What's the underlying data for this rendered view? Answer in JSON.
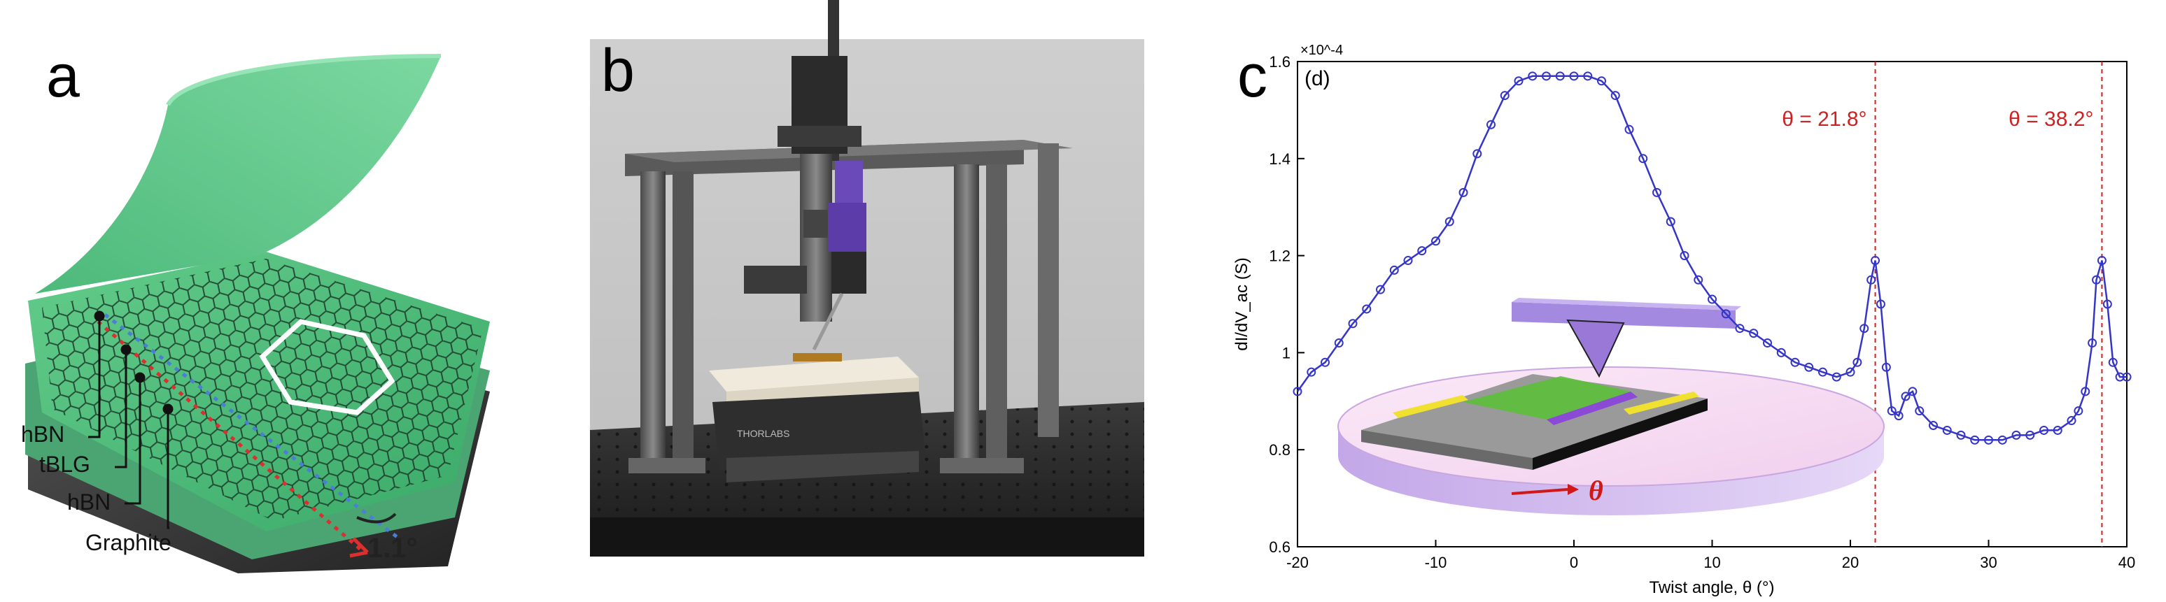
{
  "figure": {
    "panels": [
      {
        "letter": "a",
        "labels": {
          "hbn_top": "hBN",
          "tblg": "tBLG",
          "hbn_bottom": "hBN",
          "graphite": "Graphite",
          "angle": "1.1°"
        }
      },
      {
        "letter": "b"
      },
      {
        "letter": "c"
      }
    ]
  },
  "chart_data": {
    "type": "line",
    "subplot_tag": "(d)",
    "xlabel": "Twist angle, θ (°)",
    "ylabel": "dI/dV_ac (S)",
    "y_multiplier": "×10^-4",
    "xlim": [
      -20,
      40
    ],
    "ylim": [
      0.6,
      1.6
    ],
    "x_ticks": [
      -20,
      -10,
      0,
      10,
      20,
      30,
      40
    ],
    "y_ticks": [
      0.6,
      0.8,
      1.0,
      1.2,
      1.4,
      1.6
    ],
    "x_tick_labels": [
      "-20",
      "-10",
      "0",
      "10",
      "20",
      "30",
      "40"
    ],
    "y_tick_labels": [
      "0.6",
      "0.8",
      "1",
      "1.2",
      "1.4",
      "1.6"
    ],
    "vertical_lines": [
      {
        "x": 21.8,
        "label": "θ = 21.8°",
        "color": "#cc2222"
      },
      {
        "x": 38.2,
        "label": "θ = 38.2°",
        "color": "#cc2222"
      }
    ],
    "inset_label": "θ",
    "series": [
      {
        "color": "#3535c8",
        "x": [
          -20,
          -19,
          -18,
          -17,
          -16,
          -15,
          -14,
          -13,
          -12,
          -11,
          -10,
          -9,
          -8,
          -7,
          -6,
          -5,
          -4,
          -3,
          -2,
          -1,
          0,
          1,
          2,
          3,
          4,
          5,
          6,
          7,
          8,
          9,
          10,
          11,
          12,
          13,
          14,
          15,
          16,
          17,
          18,
          19,
          20,
          20.5,
          21,
          21.5,
          21.8,
          22.2,
          22.6,
          23,
          23.5,
          24,
          24.5,
          25,
          26,
          27,
          28,
          29,
          30,
          31,
          32,
          33,
          34,
          35,
          36,
          36.5,
          37,
          37.5,
          37.8,
          38.2,
          38.6,
          39,
          39.5,
          40
        ],
        "y": [
          0.92,
          0.96,
          0.98,
          1.02,
          1.06,
          1.09,
          1.13,
          1.17,
          1.19,
          1.21,
          1.23,
          1.27,
          1.33,
          1.41,
          1.47,
          1.53,
          1.56,
          1.57,
          1.57,
          1.57,
          1.57,
          1.57,
          1.56,
          1.53,
          1.46,
          1.4,
          1.33,
          1.27,
          1.2,
          1.15,
          1.11,
          1.08,
          1.05,
          1.04,
          1.02,
          1.0,
          0.98,
          0.97,
          0.96,
          0.95,
          0.96,
          0.98,
          1.05,
          1.15,
          1.19,
          1.1,
          0.97,
          0.88,
          0.87,
          0.91,
          0.92,
          0.88,
          0.85,
          0.84,
          0.83,
          0.82,
          0.82,
          0.82,
          0.83,
          0.83,
          0.84,
          0.84,
          0.86,
          0.88,
          0.92,
          1.02,
          1.15,
          1.19,
          1.1,
          0.98,
          0.95,
          0.95
        ]
      }
    ]
  }
}
